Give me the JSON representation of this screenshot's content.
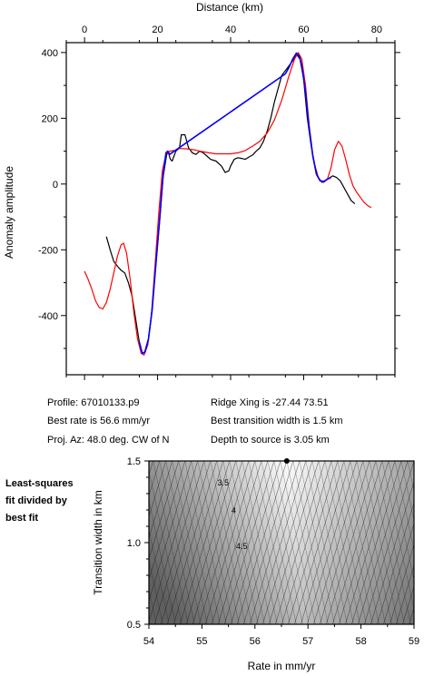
{
  "top_chart": {
    "xlabel": "Distance (km)",
    "ylabel": "Anomaly amplitude",
    "xticks": [
      0,
      20,
      40,
      60,
      80
    ],
    "yticks": [
      400,
      200,
      0,
      -200,
      -400
    ],
    "xlim": [
      -5,
      85
    ],
    "ylim": [
      -580,
      430
    ],
    "series": [
      {
        "color": "#000000",
        "points": [
          [
            6,
            -160
          ],
          [
            7,
            -200
          ],
          [
            8,
            -235
          ],
          [
            9,
            -250
          ],
          [
            10,
            -262
          ],
          [
            11,
            -270
          ],
          [
            12,
            -300
          ],
          [
            13,
            -340
          ],
          [
            14,
            -410
          ],
          [
            15,
            -480
          ],
          [
            15.8,
            -515
          ],
          [
            16.5,
            -510
          ],
          [
            17.5,
            -470
          ],
          [
            18.5,
            -380
          ],
          [
            19.5,
            -250
          ],
          [
            20.5,
            -120
          ],
          [
            21.5,
            20
          ],
          [
            22.5,
            90
          ],
          [
            23,
            95
          ],
          [
            23.5,
            75
          ],
          [
            24,
            70
          ],
          [
            25,
            100
          ],
          [
            26,
            110
          ],
          [
            26.5,
            150
          ],
          [
            27.5,
            150
          ],
          [
            28.5,
            110
          ],
          [
            29.5,
            95
          ],
          [
            30.5,
            90
          ],
          [
            31.5,
            100
          ],
          [
            32.5,
            95
          ],
          [
            33.5,
            85
          ],
          [
            34.5,
            75
          ],
          [
            36,
            70
          ],
          [
            37.5,
            55
          ],
          [
            38.5,
            35
          ],
          [
            39.5,
            40
          ],
          [
            40,
            55
          ],
          [
            41,
            75
          ],
          [
            42,
            80
          ],
          [
            43,
            78
          ],
          [
            44,
            75
          ],
          [
            45,
            82
          ],
          [
            46,
            88
          ],
          [
            47,
            100
          ],
          [
            48,
            110
          ],
          [
            49,
            130
          ],
          [
            50,
            160
          ],
          [
            51,
            200
          ],
          [
            52,
            250
          ],
          [
            53,
            290
          ],
          [
            54,
            330
          ],
          [
            55,
            345
          ],
          [
            56,
            360
          ],
          [
            57,
            375
          ],
          [
            58,
            395
          ],
          [
            59,
            380
          ],
          [
            60,
            320
          ],
          [
            61,
            200
          ],
          [
            62,
            120
          ],
          [
            63,
            60
          ],
          [
            64,
            20
          ],
          [
            65,
            5
          ],
          [
            66,
            10
          ],
          [
            67,
            18
          ],
          [
            68,
            25
          ],
          [
            69,
            20
          ],
          [
            70,
            10
          ],
          [
            71,
            -10
          ],
          [
            72,
            -30
          ],
          [
            73,
            -50
          ],
          [
            74,
            -60
          ]
        ]
      },
      {
        "color": "#ff0000",
        "points": [
          [
            0,
            -265
          ],
          [
            1,
            -290
          ],
          [
            2,
            -320
          ],
          [
            3,
            -355
          ],
          [
            4,
            -375
          ],
          [
            5,
            -380
          ],
          [
            6,
            -360
          ],
          [
            7,
            -320
          ],
          [
            8,
            -270
          ],
          [
            9,
            -220
          ],
          [
            10,
            -185
          ],
          [
            10.7,
            -180
          ],
          [
            11.5,
            -210
          ],
          [
            12.5,
            -290
          ],
          [
            13.5,
            -390
          ],
          [
            14.5,
            -470
          ],
          [
            15.5,
            -515
          ],
          [
            16.3,
            -520
          ],
          [
            17.3,
            -490
          ],
          [
            18.3,
            -400
          ],
          [
            19.3,
            -250
          ],
          [
            20.3,
            -90
          ],
          [
            21.3,
            40
          ],
          [
            22.3,
            90
          ],
          [
            23.3,
            100
          ],
          [
            24.5,
            102
          ],
          [
            26,
            108
          ],
          [
            28,
            107
          ],
          [
            30,
            104
          ],
          [
            32,
            99
          ],
          [
            34,
            95
          ],
          [
            36,
            92
          ],
          [
            38,
            92
          ],
          [
            40,
            92
          ],
          [
            42,
            95
          ],
          [
            44,
            102
          ],
          [
            46,
            115
          ],
          [
            48,
            130
          ],
          [
            50,
            155
          ],
          [
            52,
            195
          ],
          [
            54,
            255
          ],
          [
            56,
            330
          ],
          [
            57.5,
            380
          ],
          [
            58.5,
            400
          ],
          [
            59.5,
            380
          ],
          [
            60.5,
            300
          ],
          [
            61.5,
            180
          ],
          [
            62.5,
            90
          ],
          [
            63.5,
            35
          ],
          [
            64.5,
            10
          ],
          [
            65.5,
            5
          ],
          [
            66.5,
            15
          ],
          [
            67.5,
            50
          ],
          [
            68.5,
            105
          ],
          [
            69.5,
            130
          ],
          [
            70.5,
            115
          ],
          [
            71.5,
            75
          ],
          [
            72.5,
            30
          ],
          [
            73.5,
            -5
          ],
          [
            74.5,
            -25
          ],
          [
            75.5,
            -40
          ],
          [
            76.5,
            -55
          ],
          [
            77.5,
            -65
          ],
          [
            78.5,
            -72
          ]
        ]
      },
      {
        "color": "#0000ff",
        "points": [
          [
            15,
            -480
          ],
          [
            15.8,
            -515
          ],
          [
            16.5,
            -512
          ],
          [
            17.5,
            -472
          ],
          [
            18.5,
            -385
          ],
          [
            19.5,
            -250
          ],
          [
            20.5,
            -115
          ],
          [
            21.5,
            25
          ],
          [
            22.3,
            95
          ],
          [
            22.8,
            100
          ],
          [
            23.3,
            90
          ],
          [
            55,
            335
          ],
          [
            56,
            355
          ],
          [
            57,
            380
          ],
          [
            58,
            398
          ],
          [
            58.8,
            390
          ],
          [
            59.5,
            360
          ],
          [
            60.5,
            280
          ],
          [
            61.5,
            170
          ],
          [
            62.5,
            85
          ],
          [
            63.5,
            30
          ],
          [
            64.5,
            10
          ],
          [
            65.5,
            8
          ],
          [
            66.5,
            15
          ],
          [
            67.5,
            20
          ]
        ]
      }
    ]
  },
  "info": {
    "profile": "Profile: 67010133.p9",
    "ridge_xing": "Ridge Xing is -27.44 73.51",
    "best_rate": "Best rate is 56.6 mm/yr",
    "best_width": "Best transition width is 1.5 km",
    "proj_az": "Proj. Az: 48.0 deg. CW of N",
    "depth": "Depth to source is   3.05 km"
  },
  "side_label": [
    "Least-squares",
    "fit divided by",
    "best fit"
  ],
  "contour_chart": {
    "xlabel": "Rate in mm/yr",
    "ylabel": "Transition width in km",
    "xticks": [
      54,
      55,
      56,
      57,
      58,
      59
    ],
    "yticks": [
      0.5,
      1.0,
      1.5
    ],
    "ytick_labels": [
      "0.5",
      "1.0",
      "1.5"
    ],
    "xlim": [
      54,
      59
    ],
    "ylim": [
      0.5,
      1.5
    ],
    "best_point": [
      56.6,
      1.5
    ],
    "contour_labels": [
      {
        "text": "3.5",
        "x": 55.4,
        "y": 1.35
      },
      {
        "text": "4",
        "x": 55.6,
        "y": 1.18
      },
      {
        "text": "4.5",
        "x": 55.75,
        "y": 0.96
      }
    ]
  }
}
